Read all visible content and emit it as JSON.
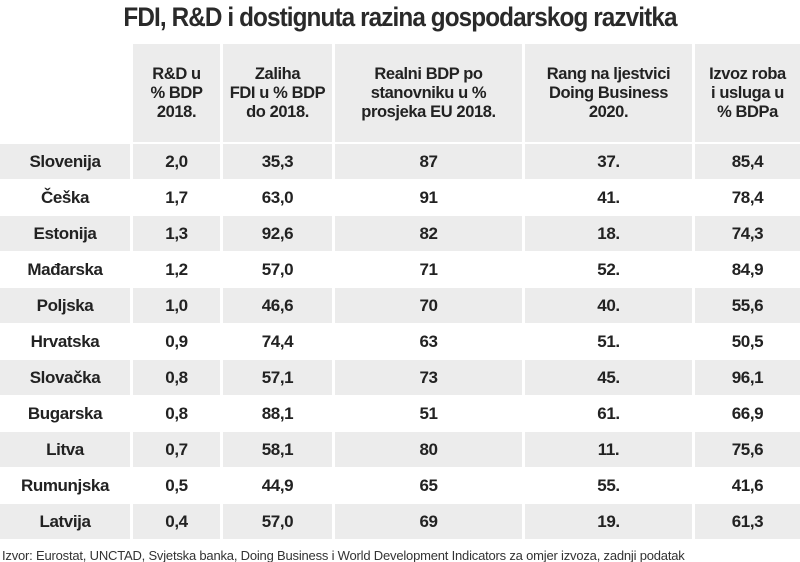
{
  "title": "FDI, R&D i dostignuta razina gospodarskog razvitka",
  "table": {
    "header": [
      [],
      [
        "R&D u",
        "% BDP",
        "2018."
      ],
      [
        "Zaliha",
        "FDI u % BDP",
        "do 2018."
      ],
      [
        "Realni BDP po",
        "stanovniku u %",
        "prosjeka EU 2018."
      ],
      [
        "Rang na ljestvici",
        "Doing Business",
        "2020."
      ],
      [
        "Izvoz roba",
        "i usluga u",
        "% BDPa"
      ]
    ],
    "rows": [
      [
        "Slovenija",
        "2,0",
        "35,3",
        "87",
        "37.",
        "85,4"
      ],
      [
        "Češka",
        "1,7",
        "63,0",
        "91",
        "41.",
        "78,4"
      ],
      [
        "Estonija",
        "1,3",
        "92,6",
        "82",
        "18.",
        "74,3"
      ],
      [
        "Mađarska",
        "1,2",
        "57,0",
        "71",
        "52.",
        "84,9"
      ],
      [
        "Poljska",
        "1,0",
        "46,6",
        "70",
        "40.",
        "55,6"
      ],
      [
        "Hrvatska",
        "0,9",
        "74,4",
        "63",
        "51.",
        "50,5"
      ],
      [
        "Slovačka",
        "0,8",
        "57,1",
        "73",
        "45.",
        "96,1"
      ],
      [
        "Bugarska",
        "0,8",
        "88,1",
        "51",
        "61.",
        "66,9"
      ],
      [
        "Litva",
        "0,7",
        "58,1",
        "80",
        "11.",
        "75,6"
      ],
      [
        "Rumunjska",
        "0,5",
        "44,9",
        "65",
        "55.",
        "41,6"
      ],
      [
        "Latvija",
        "0,4",
        "57,0",
        "69",
        "19.",
        "61,3"
      ]
    ]
  },
  "source": "Izvor: Eurostat, UNCTAD, Svjetska banka, Doing Business i World Development Indicators za omjer izvoza, zadnji podatak"
}
